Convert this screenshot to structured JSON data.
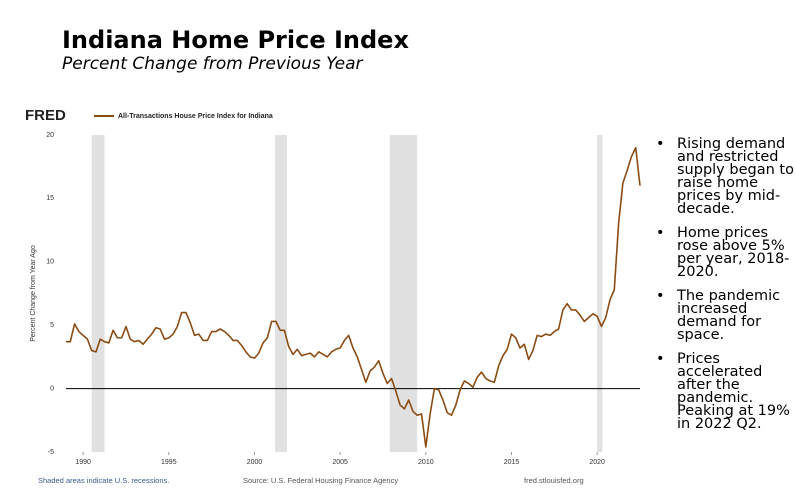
{
  "title": "Indiana Home Price Index",
  "subtitle": "Percent Change from Previous Year",
  "bullets": [
    "Rising demand and restricted supply began to raise home prices by mid-decade.",
    "Home prices rose above 5% per year, 2018-2020.",
    "The pandemic increased demand for space.",
    "Prices accelerated after the pandemic. Peaking at 19% in 2022 Q2."
  ],
  "chart_data": {
    "type": "line",
    "logo": "FRED",
    "ylabel": "Percent Change from Year Ago",
    "footnote": "Shaded areas indicate U.S. recessions.",
    "source": "Source: U.S. Federal Housing Finance Agency",
    "website": "fred.stlouisfed.org",
    "xlim": [
      1989,
      2022.5
    ],
    "xticks": [
      1990,
      1995,
      2000,
      2005,
      2010,
      2015,
      2020
    ],
    "ylim": [
      -5,
      20
    ],
    "yticks": [
      -5,
      0,
      5,
      10,
      15,
      20
    ],
    "grid": false,
    "recession_color": "#e1e1e1",
    "recessions": [
      [
        1990.5,
        1991.25
      ],
      [
        2001.2,
        2001.9
      ],
      [
        2007.9,
        2009.5
      ],
      [
        2020.0,
        2020.3
      ]
    ],
    "x": [
      1989,
      1989.25,
      1989.5,
      1989.75,
      1990,
      1990.25,
      1990.5,
      1990.75,
      1991,
      1991.25,
      1991.5,
      1991.75,
      1992,
      1992.25,
      1992.5,
      1992.75,
      1993,
      1993.25,
      1993.5,
      1993.75,
      1994,
      1994.25,
      1994.5,
      1994.75,
      1995,
      1995.25,
      1995.5,
      1995.75,
      1996,
      1996.25,
      1996.5,
      1996.75,
      1997,
      1997.25,
      1997.5,
      1997.75,
      1998,
      1998.25,
      1998.5,
      1998.75,
      1999,
      1999.25,
      1999.5,
      1999.75,
      2000,
      2000.25,
      2000.5,
      2000.75,
      2001,
      2001.25,
      2001.5,
      2001.75,
      2002,
      2002.25,
      2002.5,
      2002.75,
      2003,
      2003.25,
      2003.5,
      2003.75,
      2004,
      2004.25,
      2004.5,
      2004.75,
      2005,
      2005.25,
      2005.5,
      2005.75,
      2006,
      2006.25,
      2006.5,
      2006.75,
      2007,
      2007.25,
      2007.5,
      2007.75,
      2008,
      2008.25,
      2008.5,
      2008.75,
      2009,
      2009.25,
      2009.5,
      2009.75,
      2010,
      2010.25,
      2010.5,
      2010.75,
      2011,
      2011.25,
      2011.5,
      2011.75,
      2012,
      2012.25,
      2012.5,
      2012.75,
      2013,
      2013.25,
      2013.5,
      2013.75,
      2014,
      2014.25,
      2014.5,
      2014.75,
      2015,
      2015.25,
      2015.5,
      2015.75,
      2016,
      2016.25,
      2016.5,
      2016.75,
      2017,
      2017.25,
      2017.5,
      2017.75,
      2018,
      2018.25,
      2018.5,
      2018.75,
      2019,
      2019.25,
      2019.5,
      2019.75,
      2020,
      2020.25,
      2020.5,
      2020.75,
      2021,
      2021.25,
      2021.5,
      2021.75,
      2022,
      2022.25,
      2022.5
    ],
    "series": [
      {
        "name": "All-Transactions House Price Index for Indiana",
        "color": "#8b4c14",
        "values": [
          3.7,
          3.7,
          5.1,
          4.5,
          4.2,
          3.9,
          3.0,
          2.9,
          3.9,
          3.7,
          3.6,
          4.6,
          4.0,
          4.0,
          4.9,
          3.9,
          3.7,
          3.8,
          3.5,
          3.9,
          4.3,
          4.8,
          4.7,
          3.9,
          4.0,
          4.3,
          4.9,
          6.0,
          6.0,
          5.2,
          4.2,
          4.3,
          3.8,
          3.8,
          4.5,
          4.5,
          4.7,
          4.5,
          4.2,
          3.8,
          3.8,
          3.4,
          2.9,
          2.5,
          2.4,
          2.8,
          3.6,
          4.0,
          5.3,
          5.3,
          4.6,
          4.6,
          3.3,
          2.7,
          3.1,
          2.6,
          2.7,
          2.8,
          2.5,
          2.9,
          2.7,
          2.5,
          2.9,
          3.1,
          3.2,
          3.8,
          4.2,
          3.2,
          2.5,
          1.5,
          0.5,
          1.4,
          1.7,
          2.2,
          1.2,
          0.4,
          0.8,
          -0.2,
          -1.3,
          -1.6,
          -0.9,
          -1.8,
          -2.1,
          -2.0,
          -4.6,
          -2.0,
          0.0,
          -0.1,
          -0.9,
          -1.9,
          -2.1,
          -1.3,
          -0.1,
          0.6,
          0.4,
          0.1,
          0.9,
          1.3,
          0.8,
          0.6,
          0.5,
          1.8,
          2.6,
          3.1,
          4.3,
          4.0,
          3.2,
          3.5,
          2.3,
          3.0,
          4.2,
          4.1,
          4.3,
          4.2,
          4.5,
          4.7,
          6.2,
          6.7,
          6.2,
          6.2,
          5.8,
          5.3,
          5.6,
          5.9,
          5.7,
          4.9,
          5.6,
          7.0,
          7.8,
          13.0,
          16.2,
          17.2,
          18.3,
          19.0,
          16.0
        ]
      }
    ]
  }
}
